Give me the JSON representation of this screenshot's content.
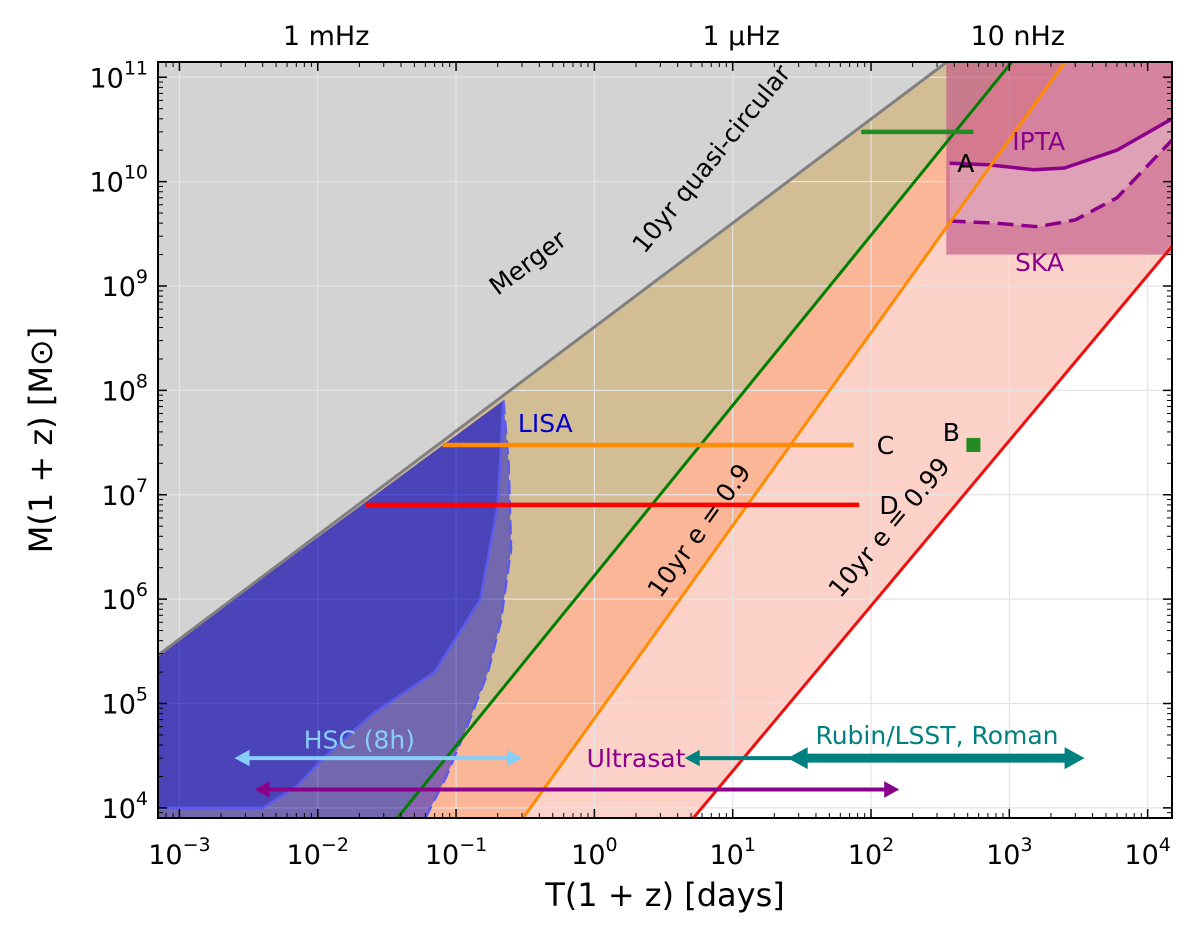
{
  "chart_data": {
    "type": "area",
    "title": "",
    "xlabel": "T(1 + z) [days]",
    "ylabel": "M(1 + z) [M⊙]",
    "xscale": "log",
    "yscale": "log",
    "xlim": [
      0.0007,
      15000
    ],
    "ylim": [
      8000,
      140000000000
    ],
    "grid": true,
    "x_ticks": [
      {
        "value": 0.001,
        "base": "10",
        "exp": "−3"
      },
      {
        "value": 0.01,
        "base": "10",
        "exp": "−2"
      },
      {
        "value": 0.1,
        "base": "10",
        "exp": "−1"
      },
      {
        "value": 1,
        "base": "10",
        "exp": "0"
      },
      {
        "value": 10,
        "base": "10",
        "exp": "1"
      },
      {
        "value": 100,
        "base": "10",
        "exp": "2"
      },
      {
        "value": 1000,
        "base": "10",
        "exp": "3"
      },
      {
        "value": 10000,
        "base": "10",
        "exp": "4"
      }
    ],
    "y_ticks": [
      {
        "value": 10000,
        "base": "10",
        "exp": "4"
      },
      {
        "value": 100000,
        "base": "10",
        "exp": "5"
      },
      {
        "value": 1000000,
        "base": "10",
        "exp": "6"
      },
      {
        "value": 10000000,
        "base": "10",
        "exp": "7"
      },
      {
        "value": 100000000,
        "base": "10",
        "exp": "8"
      },
      {
        "value": 1000000000,
        "base": "10",
        "exp": "9"
      },
      {
        "value": 10000000000,
        "base": "10",
        "exp": "10"
      },
      {
        "value": 100000000000,
        "base": "10",
        "exp": "11"
      }
    ],
    "top_axis": [
      {
        "label": "1 mHz",
        "x": 0.0115
      },
      {
        "label": "1 μHz",
        "x": 11.5
      },
      {
        "label": "10 nHz",
        "x": 1150
      }
    ],
    "regions": [
      {
        "name": "Merger",
        "color": "#d3d3d3",
        "edge_color": "#808080",
        "line": [
          [
            0.0007,
            290000
          ],
          [
            353,
            140000000000
          ]
        ],
        "label": "Merger",
        "label_pos": [
          0.2,
          800000000
        ]
      },
      {
        "name": "10yr quasi-circular",
        "color": "#d2bd94",
        "edge_color": "#008000",
        "line": [
          [
            0.0376,
            8000
          ],
          [
            1043,
            140000000000
          ]
        ],
        "label": "10yr quasi-circular",
        "label_pos": [
          2.3,
          2000000000
        ]
      },
      {
        "name": "10yr e = 0.9",
        "color": "#fbb597",
        "edge_color": "#ff8c00",
        "line": [
          [
            0.305,
            8000
          ],
          [
            2527,
            140000000000
          ]
        ],
        "label": "10yr e = 0.9",
        "label_pos": [
          3.0,
          1000000
        ]
      },
      {
        "name": "10yr e = 0.99",
        "color": "#fcd2c8",
        "edge_color": "#ee1010",
        "line": [
          [
            5.2,
            8000
          ],
          [
            15000,
            2400000000
          ]
        ],
        "label": "10yr e = 0.99",
        "label_pos": [
          60,
          1000000
        ]
      }
    ],
    "detectors": [
      {
        "name": "LISA",
        "color": "#0000cd",
        "label": "LISA",
        "label_pos": [
          0.28,
          40000000
        ],
        "boundary": [
          [
            0.0007,
            290000
          ],
          [
            0.22,
            80000000
          ],
          [
            0.24,
            20000000
          ],
          [
            0.25,
            3000000
          ],
          [
            0.21,
            600000
          ],
          [
            0.17,
            200000
          ],
          [
            0.12,
            60000
          ],
          [
            0.085,
            20000
          ],
          [
            0.06,
            8000
          ],
          [
            0.0007,
            8000
          ]
        ],
        "inner_curve": [
          [
            0.22,
            80000000
          ],
          [
            0.2,
            8000000
          ],
          [
            0.15,
            1000000
          ],
          [
            0.07,
            200000
          ],
          [
            0.025,
            80000
          ],
          [
            0.011,
            30000
          ],
          [
            0.007,
            16000
          ],
          [
            0.004,
            10000
          ],
          [
            0.0007,
            10000
          ]
        ]
      },
      {
        "name": "IPTA",
        "color": "#8b008b",
        "label": "IPTA",
        "label_pos": [
          1050,
          20000000000
        ],
        "curve": [
          [
            370,
            15000000000
          ],
          [
            700,
            14500000000
          ],
          [
            1500,
            13000000000
          ],
          [
            2500,
            13500000000
          ],
          [
            6000,
            20000000000
          ],
          [
            15000,
            40000000000
          ]
        ]
      },
      {
        "name": "SKA",
        "color": "#8b008b",
        "label": "SKA",
        "label_pos": [
          1100,
          1400000000
        ],
        "curve": [
          [
            370,
            4200000000
          ],
          [
            800,
            4000000000
          ],
          [
            1600,
            3700000000
          ],
          [
            3000,
            4300000000
          ],
          [
            6000,
            7000000000
          ],
          [
            15000,
            25000000000
          ]
        ]
      }
    ],
    "pta_box": {
      "color": "#c4608c",
      "x": [
        350,
        15000
      ],
      "y": [
        2000000000,
        140000000000
      ]
    },
    "points": [
      {
        "label": "A",
        "color": "#228b22",
        "x": [
          85,
          550
        ],
        "y": 30000000000,
        "label_pos": [
          420,
          15000000000
        ]
      },
      {
        "label": "B",
        "color": "#228b22",
        "x": 550,
        "y": 30000000,
        "label_pos": [
          330,
          40000000
        ]
      },
      {
        "label": "C",
        "color": "#ff8c00",
        "x": [
          0.08,
          75
        ],
        "y": 30000000,
        "label_pos": [
          110,
          30000000
        ]
      },
      {
        "label": "D",
        "color": "#ff0000",
        "x": [
          0.022,
          82
        ],
        "y": 8000000,
        "label_pos": [
          115,
          8000000
        ]
      }
    ],
    "surveys": [
      {
        "name": "HSC (8h)",
        "color": "#87cefa",
        "x": [
          0.0025,
          0.3
        ],
        "y": 30000,
        "label_pos": [
          0.02,
          45000
        ]
      },
      {
        "name": "Ultrasat",
        "color": "#8b008b",
        "x": [
          0.0035,
          160
        ],
        "y": 15000,
        "label_pos": [
          2.0,
          30000
        ]
      },
      {
        "name": "Rubin/LSST, Roman",
        "color": "#008080",
        "x": [
          4.5,
          3500
        ],
        "y": 30000,
        "thick_x": [
          25,
          3500
        ],
        "label_pos": [
          300,
          50000
        ]
      }
    ]
  }
}
